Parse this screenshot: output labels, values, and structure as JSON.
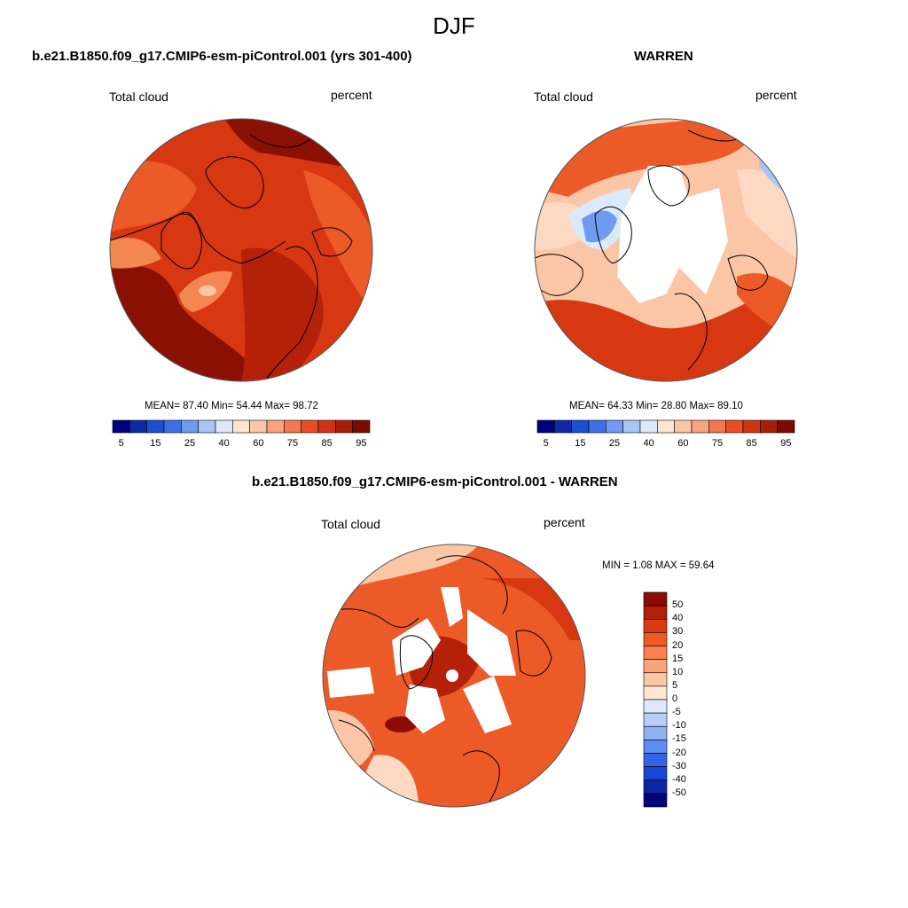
{
  "page": {
    "season": "DJF"
  },
  "panels": [
    {
      "id": "model",
      "title": "b.e21.B1850.f09_g17.CMIP6-esm-piControl.001 (yrs 301-400)",
      "left_label": "Total cloud",
      "right_label": "percent",
      "stats": "MEAN=  87.40  Min=  54.44  Max=  98.72"
    },
    {
      "id": "obs",
      "title": "WARREN",
      "left_label": "Total cloud",
      "right_label": "percent",
      "stats": "MEAN=  64.33  Min=  28.80  Max=  89.10"
    },
    {
      "id": "diff",
      "title": "b.e21.B1850.f09_g17.CMIP6-esm-piControl.001 - WARREN",
      "left_label": "Total cloud",
      "right_label": "percent",
      "stats": "MIN =   1.08 MAX =  59.64"
    }
  ],
  "colorbar_abs": {
    "colors": [
      "#00007f",
      "#0d2aa6",
      "#1d4fd0",
      "#3e6fe6",
      "#6e9bf0",
      "#a8c5f6",
      "#dbe9fb",
      "#fde5d2",
      "#fbc5a6",
      "#f9a37f",
      "#f4784f",
      "#e94d25",
      "#cf3311",
      "#a81e08",
      "#7a0a03"
    ],
    "labels": [
      "5",
      "15",
      "25",
      "40",
      "60",
      "75",
      "85",
      "95"
    ]
  },
  "colorbar_diff": {
    "colors": [
      "#8b0c04",
      "#b31e08",
      "#d93a12",
      "#ef5a24",
      "#f7824f",
      "#f9a57c",
      "#fbc6a6",
      "#fde6d4",
      "#dbe9fb",
      "#b5cff8",
      "#8fb2f3",
      "#5e8df0",
      "#3264e6",
      "#1a45d3",
      "#0b27a6",
      "#01037a"
    ],
    "labels": [
      "50",
      "40",
      "30",
      "20",
      "15",
      "10",
      "5",
      "0",
      "-5",
      "-10",
      "-15",
      "-20",
      "-30",
      "-40",
      "-50"
    ]
  },
  "map_palette": {
    "deep": "#8b1004",
    "dark": "#b52108",
    "mid": "#d73811",
    "light": "#ec5a28",
    "pale": "#f4864f",
    "paler": "#f9ad88",
    "cream": "#fdd9c3",
    "ice": "#dbe9fb",
    "blue": "#9cbdf3",
    "bluedk": "#5f8fe8"
  }
}
